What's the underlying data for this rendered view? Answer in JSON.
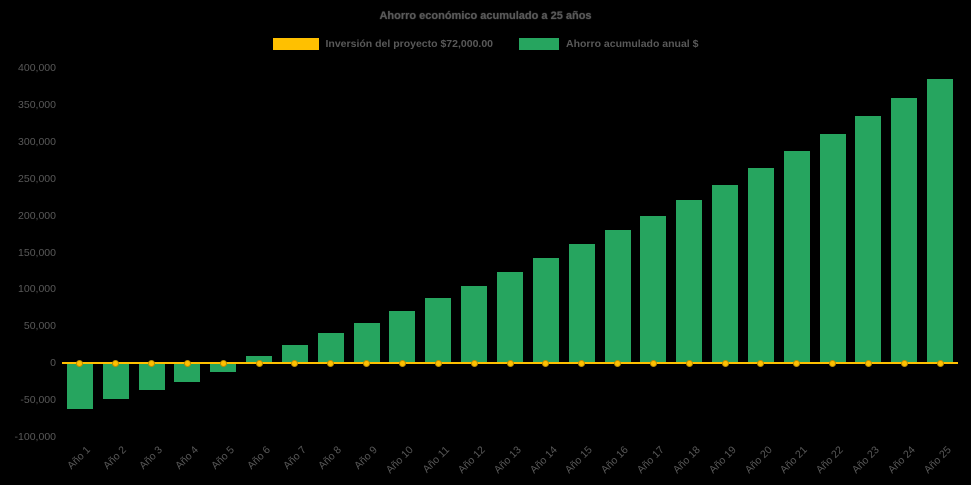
{
  "title": "Ahorro económico acumulado a 25 años",
  "legend": {
    "items": [
      {
        "label": "Inversión del proyecto $72,000.00",
        "color": "#FFC000"
      },
      {
        "label": "Ahorro acumulado anual $",
        "color": "#26A55F"
      }
    ]
  },
  "colors": {
    "background": "#000000",
    "bar_green": "#26A55F",
    "line_yellow": "#FFC000",
    "marker_border": "#BF9000",
    "text": "#595959"
  },
  "chart_data": {
    "type": "bar",
    "title": "Ahorro económico acumulado a 25 años",
    "categories": [
      "Año 1",
      "Año 2",
      "Año 3",
      "Año 4",
      "Año 5",
      "Año 6",
      "Año 7",
      "Año 8",
      "Año 9",
      "Año 10",
      "Año 11",
      "Año 12",
      "Año 13",
      "Año 14",
      "Año 15",
      "Año 16",
      "Año 17",
      "Año 18",
      "Año 19",
      "Año 20",
      "Año 21",
      "Año 22",
      "Año 23",
      "Año 24",
      "Año 25"
    ],
    "series": [
      {
        "name": "Inversión del proyecto $72,000.00",
        "type": "line",
        "color": "#FFC000",
        "values": [
          0,
          0,
          0,
          0,
          0,
          0,
          0,
          0,
          0,
          0,
          0,
          0,
          0,
          0,
          0,
          0,
          0,
          0,
          0,
          0,
          0,
          0,
          0,
          0,
          0
        ]
      },
      {
        "name": "Ahorro acumulado anual $",
        "type": "bar",
        "color": "#26A55F",
        "values": [
          -62000,
          -48000,
          -36000,
          -25000,
          -12000,
          10000,
          25000,
          41000,
          54000,
          71000,
          88000,
          105000,
          123000,
          142000,
          161000,
          181000,
          200000,
          221000,
          242000,
          265000,
          288000,
          311000,
          335000,
          360000,
          385000
        ]
      }
    ],
    "xlabel": "",
    "ylabel": "",
    "ylim": [
      -100000,
      400000
    ],
    "ytick_step": 50000,
    "grid": false,
    "legend_position": "top"
  }
}
